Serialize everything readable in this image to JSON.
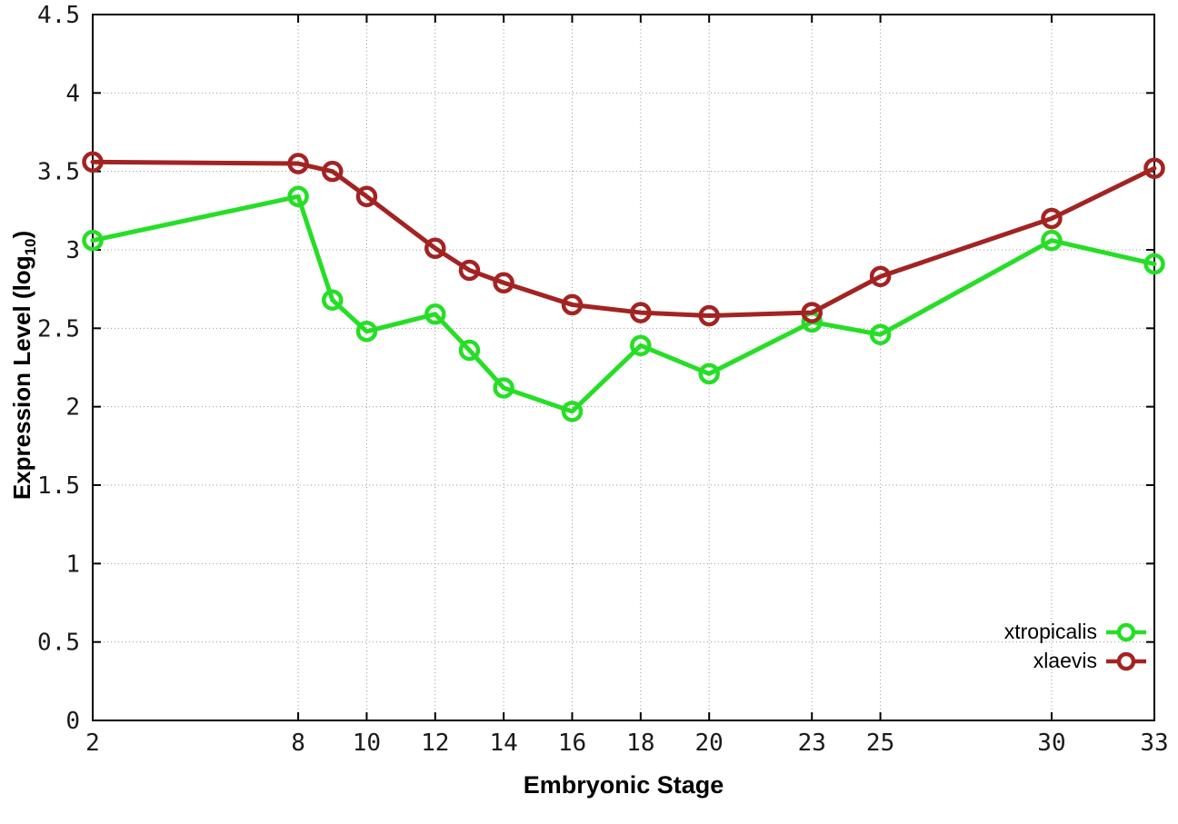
{
  "chart_data": {
    "type": "line",
    "title": "",
    "xlabel": "Embryonic Stage",
    "ylabel": "Expression Level (log10)",
    "ylabel_parts": {
      "prefix": "Expression Level (log",
      "sub": "10",
      "suffix": ")"
    },
    "x": [
      2,
      8,
      9,
      10,
      12,
      13,
      14,
      16,
      18,
      20,
      23,
      25,
      30,
      33
    ],
    "series": [
      {
        "name": "xtropicalis",
        "color": "#26DE26",
        "values": [
          3.06,
          3.34,
          2.68,
          2.48,
          2.59,
          2.36,
          2.12,
          1.97,
          2.39,
          2.21,
          2.54,
          2.46,
          3.06,
          2.91
        ]
      },
      {
        "name": "xlaevis",
        "color": "#A32323",
        "values": [
          3.56,
          3.55,
          3.5,
          3.34,
          3.01,
          2.87,
          2.79,
          2.65,
          2.6,
          2.58,
          2.6,
          2.83,
          3.2,
          3.52
        ]
      }
    ],
    "xlim": [
      2,
      33
    ],
    "ylim": [
      0,
      4.5
    ],
    "x_ticks": [
      2,
      8,
      10,
      12,
      14,
      16,
      18,
      20,
      23,
      25,
      30,
      33
    ],
    "y_ticks": [
      0,
      0.5,
      1,
      1.5,
      2,
      2.5,
      3,
      3.5,
      4,
      4.5
    ],
    "y_tick_labels": [
      "0",
      "0.5",
      "1",
      "1.5",
      "2",
      "2.5",
      "3",
      "3.5",
      "4",
      "4.5"
    ],
    "grid": true,
    "grid_color": "#9a9a9a",
    "axis_color": "#000000",
    "background_color": "#ffffff",
    "marker": "open-circle",
    "legend_position": "inside-bottom-right"
  }
}
